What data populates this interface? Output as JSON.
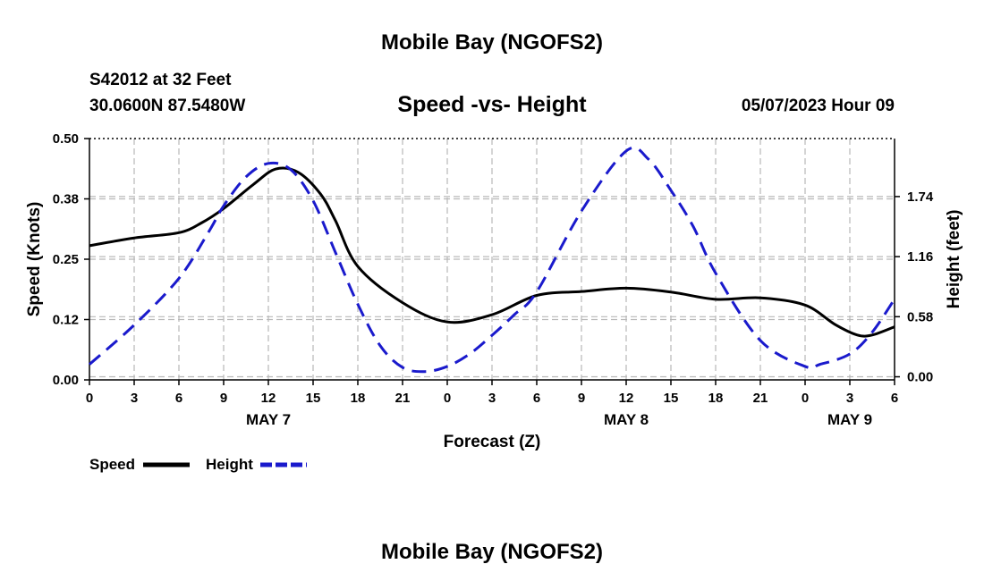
{
  "page": {
    "title_top": "Mobile Bay (NGOFS2)",
    "title_bottom": "Mobile Bay (NGOFS2)",
    "station": "S42012 at 32 Feet",
    "coords": "30.0600N  87.5480W",
    "subtitle": "Speed -vs- Height",
    "timestamp": "05/07/2023 Hour 09"
  },
  "chart_data": {
    "type": "line",
    "title": "Speed -vs- Height",
    "xlabel": "Forecast (Z)",
    "ylabel_left": "Speed (Knots)",
    "ylabel_right": "Height (feet)",
    "x_units": "hours from May 7 00Z",
    "xlim": [
      0,
      54
    ],
    "ylim_left": [
      0,
      0.5
    ],
    "ylim_right": [
      -0.03,
      2.3
    ],
    "x_ticks": [
      0,
      3,
      6,
      9,
      12,
      15,
      18,
      21,
      24,
      27,
      30,
      33,
      36,
      39,
      42,
      45,
      48,
      51,
      54
    ],
    "x_tick_labels": [
      "0",
      "3",
      "6",
      "9",
      "12",
      "15",
      "18",
      "21",
      "0",
      "3",
      "6",
      "9",
      "12",
      "15",
      "18",
      "21",
      "0",
      "3",
      "6"
    ],
    "date_labels": [
      {
        "x": 12,
        "text": "MAY 7"
      },
      {
        "x": 36,
        "text": "MAY 8"
      },
      {
        "x": 51,
        "text": "MAY 9"
      }
    ],
    "y_ticks_left": [
      0,
      0.125,
      0.25,
      0.375,
      0.5
    ],
    "y_tick_labels_left": [
      "0.00",
      "0.12",
      "0.25",
      "0.38",
      "0.50"
    ],
    "y_ticks_right": [
      0,
      0.58,
      1.16,
      1.74
    ],
    "y_tick_labels_right": [
      "0.00",
      "0.58",
      "1.16",
      "1.74"
    ],
    "grid": true,
    "series": [
      {
        "name": "Speed",
        "axis": "left",
        "color": "#000000",
        "style": "solid",
        "x": [
          0,
          3,
          6,
          7.5,
          9,
          11,
          12.5,
          14,
          15.5,
          16.5,
          18,
          21,
          24,
          27,
          30,
          33,
          36,
          39,
          42,
          45,
          48,
          50,
          51.5,
          52.5,
          54
        ],
        "y": [
          0.278,
          0.294,
          0.305,
          0.325,
          0.355,
          0.405,
          0.437,
          0.43,
          0.385,
          0.33,
          0.235,
          0.16,
          0.12,
          0.135,
          0.175,
          0.183,
          0.19,
          0.182,
          0.167,
          0.17,
          0.155,
          0.115,
          0.093,
          0.093,
          0.11
        ]
      },
      {
        "name": "Height",
        "axis": "right",
        "color": "#1a1acc",
        "style": "dashed",
        "x": [
          0,
          3,
          6,
          8,
          9,
          10.5,
          12,
          13.5,
          15,
          16.5,
          18,
          19.5,
          21,
          22.5,
          24,
          25.5,
          27,
          28.5,
          30,
          33,
          36,
          37.5,
          39,
          40.5,
          42,
          45,
          48,
          49,
          51,
          52.5,
          54
        ],
        "y": [
          0.12,
          0.5,
          0.95,
          1.4,
          1.65,
          1.93,
          2.06,
          2.0,
          1.7,
          1.2,
          0.7,
          0.3,
          0.09,
          0.05,
          0.1,
          0.22,
          0.4,
          0.6,
          0.82,
          1.6,
          2.18,
          2.1,
          1.8,
          1.45,
          1.0,
          0.35,
          0.1,
          0.12,
          0.22,
          0.43,
          0.75
        ]
      }
    ],
    "legend": {
      "position": "bottom-left",
      "entries": [
        {
          "label": "Speed",
          "color": "#000000",
          "style": "solid"
        },
        {
          "label": "Height",
          "color": "#1a1acc",
          "style": "dashed"
        }
      ]
    }
  }
}
